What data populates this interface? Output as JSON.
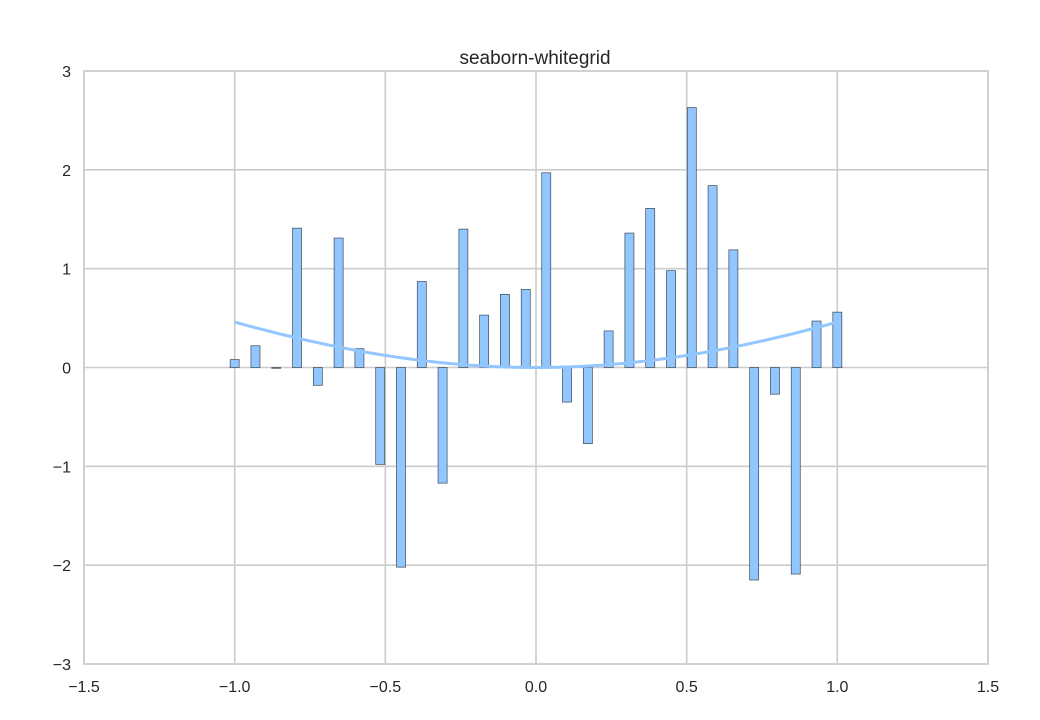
{
  "chart_data": {
    "type": "bar",
    "title": "seaborn-whitegrid",
    "style": "seaborn-whitegrid",
    "xlabel": "",
    "ylabel": "",
    "xlim": [
      -1.5,
      1.5
    ],
    "ylim": [
      -3,
      3
    ],
    "grid": true,
    "x_ticks": [
      -1.5,
      -1.0,
      -0.5,
      0.0,
      0.5,
      1.0,
      1.5
    ],
    "x_tick_labels": [
      "−1.5",
      "−1.0",
      "−0.5",
      "0.0",
      "0.5",
      "1.0",
      "1.5"
    ],
    "y_ticks": [
      -3,
      -2,
      -1,
      0,
      1,
      2,
      3
    ],
    "y_tick_labels": [
      "−3",
      "−2",
      "−1",
      "0",
      "1",
      "2",
      "3"
    ],
    "bar_width": 0.03,
    "series": [
      {
        "name": "bars",
        "kind": "bar",
        "x": [
          -1.0,
          -0.931,
          -0.862,
          -0.793,
          -0.724,
          -0.655,
          -0.586,
          -0.517,
          -0.448,
          -0.379,
          -0.31,
          -0.241,
          -0.172,
          -0.103,
          -0.034,
          0.034,
          0.103,
          0.172,
          0.241,
          0.31,
          0.379,
          0.448,
          0.517,
          0.586,
          0.655,
          0.724,
          0.793,
          0.862,
          0.931,
          1.0
        ],
        "values": [
          0.08,
          0.22,
          0.0,
          1.41,
          -0.18,
          1.31,
          0.19,
          -0.98,
          -2.02,
          0.87,
          -1.17,
          1.4,
          0.53,
          0.74,
          0.79,
          1.97,
          -0.35,
          -0.77,
          0.37,
          1.36,
          1.61,
          0.98,
          2.63,
          1.84,
          1.19,
          -2.15,
          -0.27,
          -2.09,
          0.47,
          0.56
        ]
      },
      {
        "name": "curve",
        "kind": "line",
        "function": "1 - cos(x)"
      }
    ],
    "colors": {
      "bar_fill": "#92c6ff",
      "bar_edge": "#3b4a5a",
      "line": "#92c6ff",
      "grid": "#cccccc",
      "frame": "#cccccc"
    }
  }
}
